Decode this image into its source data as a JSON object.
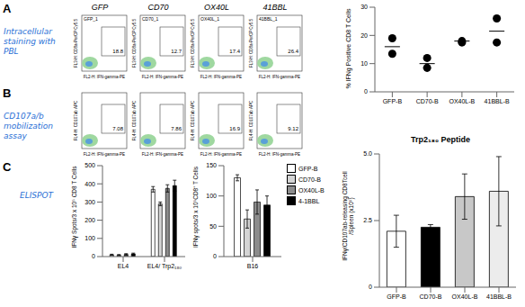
{
  "panels": [
    {
      "label": "A",
      "note": "Intracellular staining with PBL",
      "flow": {
        "xlabel": "FL2-H: IFN-gamma-PE",
        "ylabel": "FL3-H: CD8a-PerCP Cy5.5",
        "plots": [
          {
            "title": "GFP",
            "gate_label": "GFP_1",
            "gate_value": 18.8
          },
          {
            "title": "CD70",
            "gate_label": "CD70_1",
            "gate_value": 12.7
          },
          {
            "title": "OX40L",
            "gate_label": "OX40L_1",
            "gate_value": 17.4
          },
          {
            "title": "41BBL",
            "gate_label": "41BBL_1",
            "gate_value": 26.4
          }
        ]
      }
    },
    {
      "label": "B",
      "note": "CD107a/b mobilization assay",
      "flow": {
        "xlabel": "FL2-H: IFN-gamma-PE",
        "ylabel": "FL4-H: CD107ab APC",
        "plots": [
          {
            "gate_value": 7.08
          },
          {
            "gate_value": 7.86
          },
          {
            "gate_value": 16.9
          },
          {
            "gate_value": 9.12
          }
        ]
      }
    },
    {
      "label": "C",
      "note": "ELISPOT"
    }
  ],
  "chart_data": [
    {
      "type": "scatter",
      "categories": [
        "GFP-B",
        "CD70-B",
        "OX40L-B",
        "41BBL-B"
      ],
      "values": [
        [
          19,
          13.5
        ],
        [
          12,
          8.5
        ],
        [
          17.5,
          18
        ],
        [
          26,
          17.5
        ]
      ],
      "means": [
        16,
        10,
        18,
        21.5
      ],
      "ylabel": "% IFNg Positive CD8 T Cells",
      "ylim": [
        0,
        30
      ],
      "yticks": [
        0,
        10,
        20,
        30
      ],
      "color": "#000000"
    },
    {
      "type": "bar",
      "categories": [
        "EL4",
        "EL4/ Trp2₁₈₀"
      ],
      "ylabel": "IFNγ Spots/3 x 10⁵ CD8 T Cells",
      "ylim": [
        0,
        500
      ],
      "yticks": [
        0,
        100,
        200,
        300,
        400,
        500
      ],
      "series": [
        {
          "name": "GFP-B",
          "color": "#ffffff",
          "values": [
            10,
            370
          ],
          "errors": [
            3,
            15
          ]
        },
        {
          "name": "CD70-B",
          "color": "#d4d4d4",
          "values": [
            8,
            290
          ],
          "errors": [
            3,
            10
          ]
        },
        {
          "name": "OX40L-B",
          "color": "#8c8c8c",
          "values": [
            12,
            375
          ],
          "errors": [
            4,
            20
          ]
        },
        {
          "name": "4-1BBL",
          "color": "#000000",
          "values": [
            15,
            390
          ],
          "errors": [
            4,
            30
          ]
        }
      ]
    },
    {
      "type": "bar",
      "categories": [
        "B16"
      ],
      "ylabel": "IFNγ spots/3 x 10⁵CD8⁺ T Cells",
      "ylim": [
        0,
        150
      ],
      "yticks": [
        0,
        50,
        100,
        150
      ],
      "legend": "top-right",
      "series": [
        {
          "name": "GFP-B",
          "color": "#ffffff",
          "values": [
            130
          ],
          "errors": [
            5
          ]
        },
        {
          "name": "CD70-B",
          "color": "#d4d4d4",
          "values": [
            62
          ],
          "errors": [
            15
          ]
        },
        {
          "name": "OX40L-B",
          "color": "#8c8c8c",
          "values": [
            90
          ],
          "errors": [
            20
          ]
        },
        {
          "name": "4-1BBL",
          "color": "#000000",
          "values": [
            85
          ],
          "errors": [
            15
          ]
        }
      ]
    },
    {
      "type": "bar",
      "title": "Trp2₁₈₀ Peptide",
      "categories": [
        "GFP-B",
        "CD70-B",
        "OX40L-B",
        "41BBL-B"
      ],
      "values": [
        2.1,
        2.25,
        3.4,
        3.6
      ],
      "errors": [
        0.6,
        0.1,
        0.85,
        1.3
      ],
      "colors": [
        "#ffffff",
        "#000000",
        "#c8c8c8",
        "#ececec"
      ],
      "ylabel": [
        "IFNγ/CD107ab-releasing CD8Tcell",
        "/Spleen (x10⁵)"
      ],
      "ylim": [
        0,
        5
      ],
      "yticks": [
        0,
        2.5,
        {
          "value": 5,
          "label": "5.0"
        }
      ]
    }
  ]
}
